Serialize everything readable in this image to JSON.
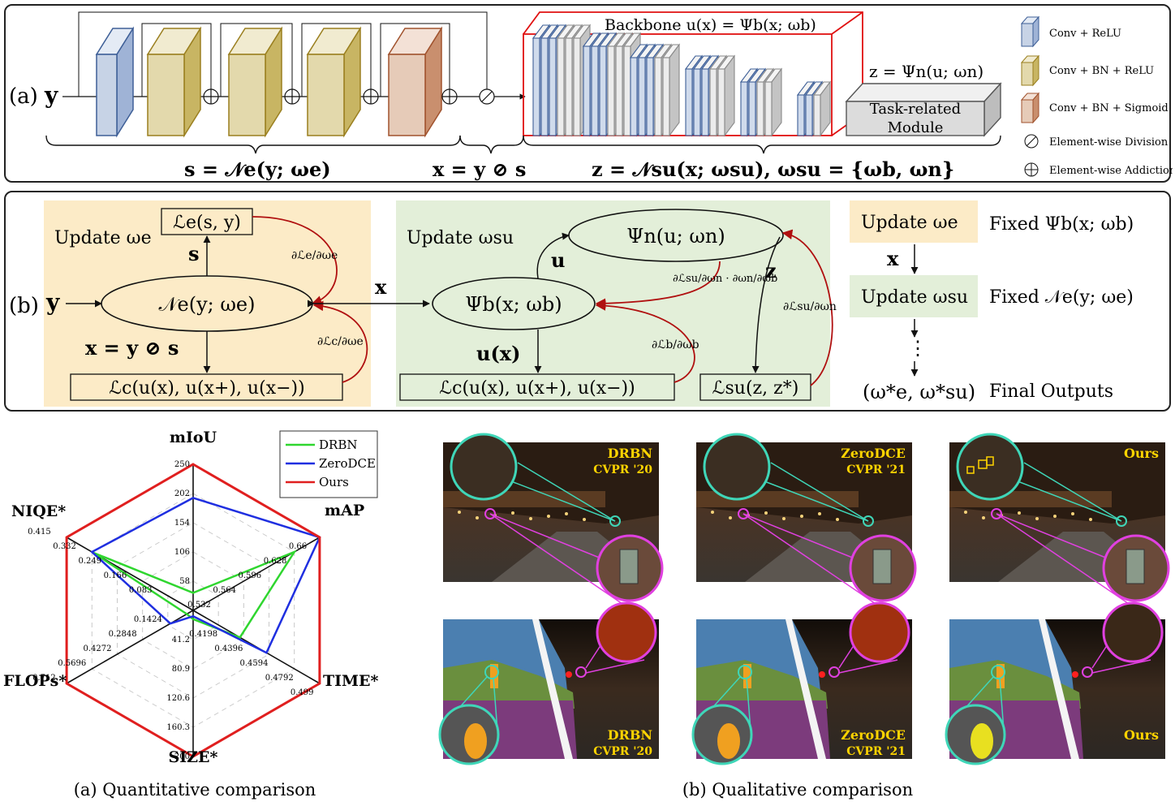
{
  "panel_a": {
    "label": "(a)",
    "input": "y",
    "backbone_label": "Backbone u(x) = Ψb(x; ωb)",
    "head_label": "z = Ψn(u; ωn)",
    "task_module_line1": "Task-related",
    "task_module_line2": "Module",
    "brace_s": "s = 𝒩e(y; ωe)",
    "brace_x": "x = y ⊘ s",
    "brace_z": "z = 𝒩su(x; ωsu), ωsu = {ωb, ωn}",
    "legend": [
      {
        "label": "Conv + ReLU",
        "color": "#3e5f97",
        "face": "#c7d3e6"
      },
      {
        "label": "Conv + BN + ReLU",
        "color": "#9a7f1f",
        "face": "#e3d9ac"
      },
      {
        "label": "Conv + BN + Sigmoid",
        "color": "#a0522d",
        "face": "#e6cbb8"
      },
      {
        "label": "Element-wise Division",
        "icon": "division-icon"
      },
      {
        "label": "Element-wise Addiction",
        "icon": "plus-icon"
      }
    ]
  },
  "panel_b": {
    "label": "(b)",
    "update_we": "Update ωe",
    "update_wsu": "Update ωsu",
    "loss_e": "ℒe(s, y)",
    "loss_c_left": "ℒc(u(x), u(x+), u(x−))",
    "loss_c_right": "ℒc(u(x), u(x+), u(x−))",
    "loss_su": "ℒsu(z, z*)",
    "node_ne": "𝒩e(y; ωe)",
    "node_psib": "Ψb(x; ωb)",
    "node_psin": "Ψn(u; ωn)",
    "s": "s",
    "y": "y",
    "x": "x",
    "u": "u",
    "z": "z",
    "ux": "u(x)",
    "x_eq": "x = y ⊘ s",
    "grad_e": "∂ℒe/∂ωe",
    "grad_c": "∂ℒc/∂ωe",
    "grad_b": "∂ℒb/∂ωb",
    "grad_su_n": "∂ℒsu/∂ωn",
    "grad_chain": "∂ℒsu/∂ωn · ∂ωn/∂ωb",
    "grad_su": "∂ℒsu/∂ωn",
    "steps": [
      {
        "update": "Update ωe",
        "fixed": "Fixed Ψb(x; ωb)"
      },
      {
        "update": "Update ωsu",
        "fixed": "Fixed 𝒩e(y; ωe)"
      }
    ],
    "step_arrow_label": "x",
    "dots": "⋮",
    "final": "(ω*e, ω*su)",
    "final_label": "Final Outputs"
  },
  "radar": {
    "caption": "(a) Quantitative comparison",
    "axes": [
      "mIoU",
      "mAP",
      "TIME*",
      "SIZE*",
      "FLOPs*",
      "NIQE*"
    ],
    "ticks": {
      "mIoU": [
        "58",
        "106",
        "154",
        "202",
        "250"
      ],
      "mAP": [
        "0.532",
        "0.564",
        "0.596",
        "0.628",
        "0.66"
      ],
      "TIME": [
        "0.4198",
        "0.4396",
        "0.4594",
        "0.4792",
        "0.499"
      ],
      "SIZE": [
        "41.2",
        "80.9",
        "120.6",
        "160.3",
        "200"
      ],
      "FLOPs": [
        "0.1424",
        "0.2848",
        "0.4272",
        "0.5696",
        "0.712"
      ],
      "NIQE": [
        "0.083",
        "0.166",
        "0.249",
        "0.332",
        "0.415"
      ]
    },
    "legend": [
      {
        "name": "DRBN",
        "color": "#2fd62f"
      },
      {
        "name": "ZeroDCE",
        "color": "#1f2fe0"
      },
      {
        "name": "Ours",
        "color": "#e01f1f"
      }
    ]
  },
  "chart_data": {
    "type": "radar",
    "axes": [
      "mIoU",
      "mAP",
      "TIME*",
      "SIZE*",
      "FLOPs*",
      "NIQE*"
    ],
    "ranges": {
      "mIoU": [
        10,
        250
      ],
      "mAP": [
        0.5,
        0.66
      ],
      "TIME*": [
        0.4,
        0.499
      ],
      "SIZE*": [
        1.5,
        200
      ],
      "FLOPs*": [
        0,
        0.712
      ],
      "NIQE*": [
        0,
        0.415
      ]
    },
    "series": [
      {
        "name": "DRBN",
        "values": [
          0.12,
          0.8,
          0.37,
          0.06,
          0.05,
          0.79
        ]
      },
      {
        "name": "ZeroDCE",
        "values": [
          0.77,
          1.0,
          0.58,
          0.04,
          0.18,
          0.8
        ]
      },
      {
        "name": "Ours",
        "values": [
          1.0,
          1.0,
          1.0,
          1.0,
          1.0,
          1.0
        ]
      }
    ]
  },
  "qualitative": {
    "caption": "(b) Qualitative comparison",
    "top": [
      {
        "method": "DRBN",
        "venue": "CVPR '20"
      },
      {
        "method": "ZeroDCE",
        "venue": "CVPR '21"
      },
      {
        "method": "Ours",
        "venue": ""
      }
    ],
    "bottom": [
      {
        "method": "DRBN",
        "venue": "CVPR '20"
      },
      {
        "method": "ZeroDCE",
        "venue": "CVPR '21"
      },
      {
        "method": "Ours",
        "venue": ""
      }
    ]
  }
}
